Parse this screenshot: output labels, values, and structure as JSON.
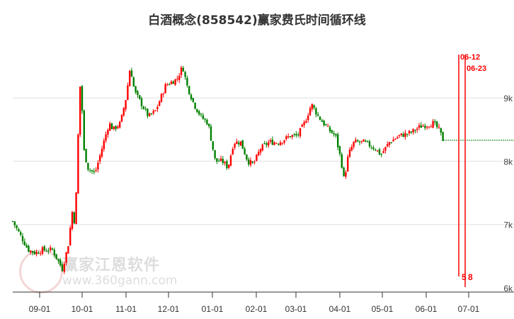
{
  "title": "白酒概念(858542)赢家费氏时间循环线",
  "watermark": {
    "name": "赢家江恩软件",
    "url": "www.360gann.com"
  },
  "colors": {
    "up": "#ff0000",
    "down": "#008000",
    "cycle": "#ff0000",
    "grid": "#e0e0e0"
  },
  "chart_data": {
    "type": "candlestick",
    "title": "白酒概念(858542)赢家费氏时间循环线",
    "ylim": [
      6000,
      9800
    ],
    "y_ticks": [
      {
        "v": 6000,
        "label": "6k"
      },
      {
        "v": 7000,
        "label": "7k"
      },
      {
        "v": 8000,
        "label": "8k"
      },
      {
        "v": 9000,
        "label": "9k"
      }
    ],
    "x_ticks": [
      {
        "day": 19,
        "label": "09-01"
      },
      {
        "day": 49,
        "label": "10-01"
      },
      {
        "day": 80,
        "label": "11-01"
      },
      {
        "day": 110,
        "label": "12-01"
      },
      {
        "day": 141,
        "label": "01-01"
      },
      {
        "day": 172,
        "label": "02-01"
      },
      {
        "day": 200,
        "label": "03-01"
      },
      {
        "day": 231,
        "label": "04-01"
      },
      {
        "day": 261,
        "label": "05-01"
      },
      {
        "day": 292,
        "label": "06-01"
      },
      {
        "day": 322,
        "label": "07-01"
      }
    ],
    "close_anchors": [
      [
        0,
        7050
      ],
      [
        11,
        6600
      ],
      [
        16,
        6550
      ],
      [
        21,
        6600
      ],
      [
        28,
        6600
      ],
      [
        35,
        6300
      ],
      [
        39,
        6650
      ],
      [
        42,
        7200
      ],
      [
        44,
        7000
      ],
      [
        45,
        7600
      ],
      [
        46,
        8300
      ],
      [
        48,
        9400
      ],
      [
        50,
        8200
      ],
      [
        53,
        7900
      ],
      [
        58,
        7800
      ],
      [
        63,
        8200
      ],
      [
        68,
        8600
      ],
      [
        71,
        8500
      ],
      [
        76,
        8600
      ],
      [
        80,
        9000
      ],
      [
        83,
        9500
      ],
      [
        86,
        9100
      ],
      [
        91,
        8900
      ],
      [
        96,
        8700
      ],
      [
        101,
        8800
      ],
      [
        108,
        9200
      ],
      [
        116,
        9300
      ],
      [
        120,
        9500
      ],
      [
        123,
        9200
      ],
      [
        128,
        8900
      ],
      [
        133,
        8700
      ],
      [
        138,
        8600
      ],
      [
        143,
        8000
      ],
      [
        148,
        8000
      ],
      [
        152,
        7900
      ],
      [
        156,
        8300
      ],
      [
        161,
        8300
      ],
      [
        166,
        8000
      ],
      [
        170,
        7950
      ],
      [
        175,
        8200
      ],
      [
        181,
        8300
      ],
      [
        188,
        8300
      ],
      [
        196,
        8400
      ],
      [
        201,
        8400
      ],
      [
        206,
        8600
      ],
      [
        211,
        8900
      ],
      [
        216,
        8700
      ],
      [
        223,
        8500
      ],
      [
        228,
        8400
      ],
      [
        232,
        8000
      ],
      [
        234,
        7700
      ],
      [
        237,
        8100
      ],
      [
        241,
        8300
      ],
      [
        248,
        8300
      ],
      [
        256,
        8200
      ],
      [
        260,
        8100
      ],
      [
        266,
        8300
      ],
      [
        273,
        8400
      ],
      [
        281,
        8450
      ],
      [
        288,
        8550
      ],
      [
        297,
        8600
      ],
      [
        301,
        8500
      ],
      [
        304,
        8330
      ]
    ],
    "last_close": 8330,
    "cycle_lines": [
      {
        "date_label": "06-12",
        "count_label": "5",
        "day": 307.5
      },
      {
        "date_label": "06-23",
        "count_label": "8",
        "day": 312
      }
    ]
  }
}
